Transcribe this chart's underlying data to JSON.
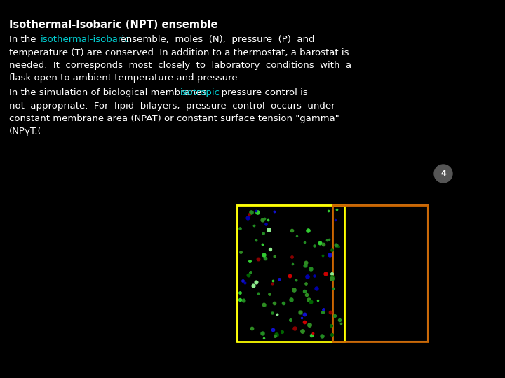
{
  "bg_color": "#000000",
  "title_text": "Isothermal-Isobaric (NPT) ensemble",
  "title_color": "#ffffff",
  "title_fontsize": 10.5,
  "body_fontsize": 9.5,
  "link_color": "#00ced1",
  "text_color": "#ffffff",
  "page_number": "4",
  "page_circle_color": "#555555",
  "outer_box_color": "#999999",
  "yellow_box_color": "#ffff00",
  "orange_box_color": "#cc6600",
  "dot_colors": [
    "#228B22",
    "#2E8B22",
    "#32CD32",
    "#006400",
    "#0000AA",
    "#1010CC",
    "#8B0000",
    "#CC0000",
    "#90EE90"
  ],
  "dot_color_weights": [
    0.22,
    0.18,
    0.15,
    0.12,
    0.1,
    0.05,
    0.08,
    0.04,
    0.06
  ],
  "n_dots": 110,
  "dot_size_min": 1.5,
  "dot_size_max": 4.0,
  "seed": 42,
  "lines1": [
    [
      [
        "In the  ",
        false
      ],
      [
        "isothermal-isobaric",
        true
      ],
      [
        "  ensemble,  moles  (N),  pressure  (P)  and",
        false
      ]
    ],
    [
      [
        "temperature (T) are conserved. In addition to a thermostat, a barostat is",
        false
      ]
    ],
    [
      [
        "needed.  It  corresponds  most  closely  to  laboratory  conditions  with  a",
        false
      ]
    ],
    [
      [
        "flask open to ambient temperature and pressure.",
        false
      ]
    ]
  ],
  "lines2": [
    [
      [
        "In the simulation of biological membranes,  ",
        false
      ],
      [
        "isotropic",
        true
      ],
      [
        "  pressure control is",
        false
      ]
    ],
    [
      [
        "not  appropriate.  For  lipid  bilayers,  pressure  control  occurs  under",
        false
      ]
    ],
    [
      [
        "constant membrane area (NPAT) or constant surface tension \"gamma\"",
        false
      ]
    ],
    [
      [
        "(NPγT.(",
        false
      ]
    ]
  ]
}
